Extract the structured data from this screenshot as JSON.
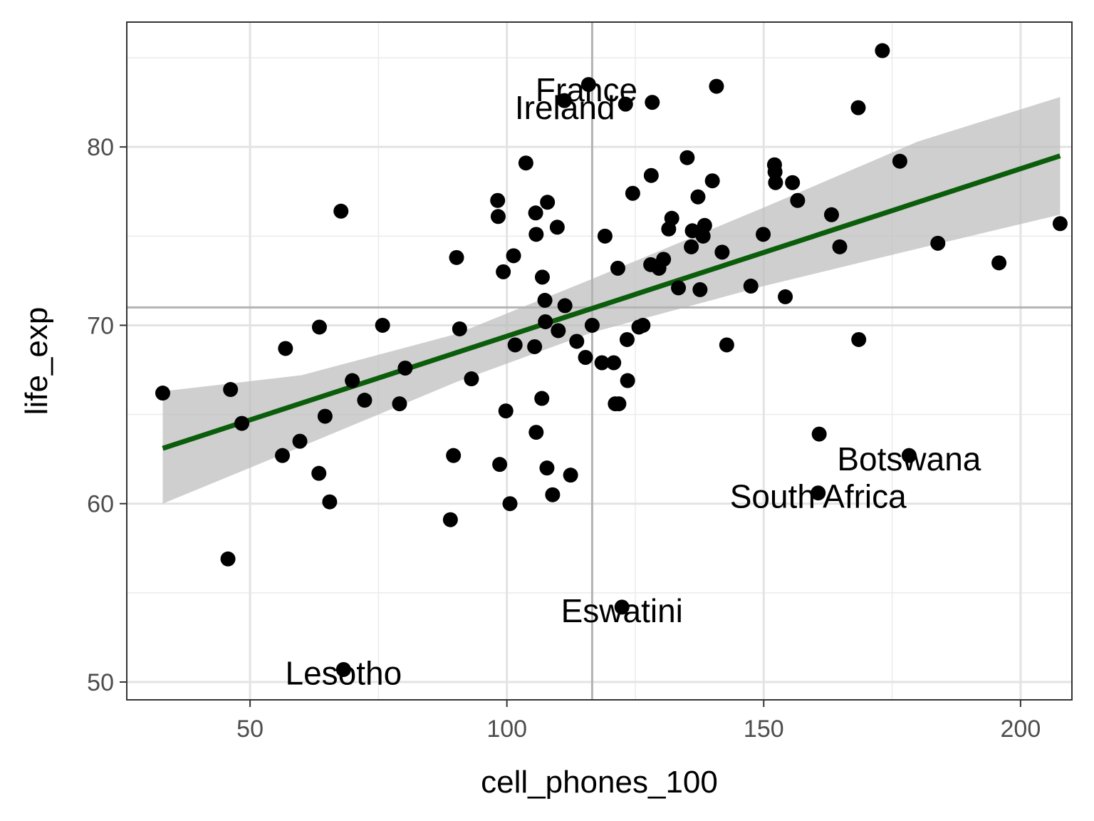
{
  "chart_data": {
    "type": "scatter",
    "title": "",
    "xlabel": "cell_phones_100",
    "ylabel": "life_exp",
    "xlim": [
      26,
      210
    ],
    "ylim": [
      49,
      87
    ],
    "x_ticks": [
      50,
      100,
      150,
      200
    ],
    "y_ticks": [
      50,
      60,
      70,
      80
    ],
    "x_tick_labels": [
      "50",
      "100",
      "150",
      "200"
    ],
    "y_tick_labels": [
      "50",
      "60",
      "70",
      "80"
    ],
    "grid": true,
    "reference_lines": {
      "vline_x": 116.6,
      "hline_y": 71.0
    },
    "colors": {
      "points": "#000000",
      "trend": "#0b5d0b",
      "ribbon": "#bdbdbd",
      "reference": "#b3b3b3"
    },
    "trend_line": {
      "x": [
        33,
        207.7
      ],
      "y": [
        63.1,
        79.5
      ]
    },
    "confidence_band": {
      "x": [
        33,
        60,
        90,
        116.6,
        150,
        180,
        207.7
      ],
      "lower": [
        60.0,
        63.2,
        66.8,
        69.6,
        72.2,
        74.3,
        76.2
      ],
      "upper": [
        66.3,
        67.2,
        69.5,
        72.6,
        76.6,
        80.3,
        82.8
      ]
    },
    "points": [
      {
        "x": 33,
        "y": 66.2
      },
      {
        "x": 45.7,
        "y": 56.9
      },
      {
        "x": 46.2,
        "y": 66.4
      },
      {
        "x": 48.4,
        "y": 64.5
      },
      {
        "x": 56.3,
        "y": 62.7
      },
      {
        "x": 56.9,
        "y": 68.7
      },
      {
        "x": 59.7,
        "y": 63.5
      },
      {
        "x": 63.5,
        "y": 69.9
      },
      {
        "x": 63.4,
        "y": 61.7
      },
      {
        "x": 64.6,
        "y": 64.9
      },
      {
        "x": 65.5,
        "y": 60.1
      },
      {
        "x": 67.7,
        "y": 76.4
      },
      {
        "x": 68.2,
        "y": 50.7
      },
      {
        "x": 69.9,
        "y": 66.9
      },
      {
        "x": 72.3,
        "y": 65.8
      },
      {
        "x": 75.8,
        "y": 70.0
      },
      {
        "x": 79.1,
        "y": 65.6
      },
      {
        "x": 80.2,
        "y": 67.6
      },
      {
        "x": 89.0,
        "y": 59.1
      },
      {
        "x": 89.6,
        "y": 62.7
      },
      {
        "x": 90.2,
        "y": 73.8
      },
      {
        "x": 90.8,
        "y": 69.8
      },
      {
        "x": 93.1,
        "y": 67.0
      },
      {
        "x": 98.2,
        "y": 77.0
      },
      {
        "x": 98.3,
        "y": 76.1
      },
      {
        "x": 98.6,
        "y": 62.2
      },
      {
        "x": 99.3,
        "y": 73.0
      },
      {
        "x": 99.8,
        "y": 65.2
      },
      {
        "x": 100.6,
        "y": 60.0
      },
      {
        "x": 101.3,
        "y": 73.9
      },
      {
        "x": 101.6,
        "y": 68.9
      },
      {
        "x": 103.7,
        "y": 79.1
      },
      {
        "x": 105.6,
        "y": 76.3
      },
      {
        "x": 105.7,
        "y": 75.1
      },
      {
        "x": 105.4,
        "y": 68.8
      },
      {
        "x": 105.7,
        "y": 64.0
      },
      {
        "x": 106.9,
        "y": 72.7
      },
      {
        "x": 106.8,
        "y": 65.9
      },
      {
        "x": 107.4,
        "y": 71.4
      },
      {
        "x": 107.5,
        "y": 70.2
      },
      {
        "x": 107.9,
        "y": 76.9
      },
      {
        "x": 107.8,
        "y": 62.0
      },
      {
        "x": 108.9,
        "y": 60.5
      },
      {
        "x": 109.8,
        "y": 75.5
      },
      {
        "x": 110.0,
        "y": 69.7
      },
      {
        "x": 111.2,
        "y": 82.6
      },
      {
        "x": 111.3,
        "y": 71.1
      },
      {
        "x": 112.4,
        "y": 61.6
      },
      {
        "x": 113.6,
        "y": 69.1
      },
      {
        "x": 115.3,
        "y": 68.2
      },
      {
        "x": 115.9,
        "y": 83.5
      },
      {
        "x": 116.6,
        "y": 70.0
      },
      {
        "x": 118.5,
        "y": 67.9
      },
      {
        "x": 119.1,
        "y": 75.0
      },
      {
        "x": 120.8,
        "y": 67.9
      },
      {
        "x": 121.1,
        "y": 65.6
      },
      {
        "x": 121.6,
        "y": 73.2
      },
      {
        "x": 121.8,
        "y": 65.6
      },
      {
        "x": 122.4,
        "y": 54.2
      },
      {
        "x": 123.1,
        "y": 82.4
      },
      {
        "x": 123.4,
        "y": 69.2
      },
      {
        "x": 123.5,
        "y": 66.9
      },
      {
        "x": 124.5,
        "y": 77.4
      },
      {
        "x": 125.7,
        "y": 69.9
      },
      {
        "x": 126.5,
        "y": 70.0
      },
      {
        "x": 128.1,
        "y": 78.4
      },
      {
        "x": 128.0,
        "y": 73.4
      },
      {
        "x": 128.3,
        "y": 82.5
      },
      {
        "x": 129.6,
        "y": 73.2
      },
      {
        "x": 130.5,
        "y": 73.7
      },
      {
        "x": 131.5,
        "y": 75.4
      },
      {
        "x": 132.1,
        "y": 76.0
      },
      {
        "x": 133.4,
        "y": 72.1
      },
      {
        "x": 135.1,
        "y": 79.4
      },
      {
        "x": 135.9,
        "y": 74.4
      },
      {
        "x": 136.1,
        "y": 75.3
      },
      {
        "x": 137.2,
        "y": 77.2
      },
      {
        "x": 137.6,
        "y": 72.0
      },
      {
        "x": 138.2,
        "y": 75.0
      },
      {
        "x": 138.5,
        "y": 75.6
      },
      {
        "x": 140.0,
        "y": 78.1
      },
      {
        "x": 140.8,
        "y": 83.4
      },
      {
        "x": 141.9,
        "y": 74.1
      },
      {
        "x": 142.8,
        "y": 68.9
      },
      {
        "x": 147.5,
        "y": 72.2
      },
      {
        "x": 149.9,
        "y": 75.1
      },
      {
        "x": 152.1,
        "y": 79.0
      },
      {
        "x": 152.2,
        "y": 78.6
      },
      {
        "x": 152.3,
        "y": 78.0
      },
      {
        "x": 154.2,
        "y": 71.6
      },
      {
        "x": 155.6,
        "y": 78.0
      },
      {
        "x": 156.6,
        "y": 77.0
      },
      {
        "x": 160.8,
        "y": 63.9
      },
      {
        "x": 160.6,
        "y": 60.6
      },
      {
        "x": 163.2,
        "y": 76.2
      },
      {
        "x": 164.8,
        "y": 74.4
      },
      {
        "x": 168.4,
        "y": 82.2
      },
      {
        "x": 168.5,
        "y": 69.2
      },
      {
        "x": 173.1,
        "y": 85.4
      },
      {
        "x": 176.5,
        "y": 79.2
      },
      {
        "x": 178.3,
        "y": 62.7
      },
      {
        "x": 183.9,
        "y": 74.6
      },
      {
        "x": 195.8,
        "y": 73.5
      },
      {
        "x": 207.7,
        "y": 75.7
      }
    ],
    "annotations": [
      {
        "text": "France",
        "x": 115.5,
        "y": 83.2
      },
      {
        "text": "Ireland",
        "x": 111.3,
        "y": 82.2
      },
      {
        "text": "Botswana",
        "x": 178.3,
        "y": 62.5
      },
      {
        "text": "South Africa",
        "x": 160.6,
        "y": 60.4
      },
      {
        "text": "Eswatini",
        "x": 122.4,
        "y": 54.0
      },
      {
        "text": "Lesotho",
        "x": 68.2,
        "y": 50.5
      }
    ]
  }
}
